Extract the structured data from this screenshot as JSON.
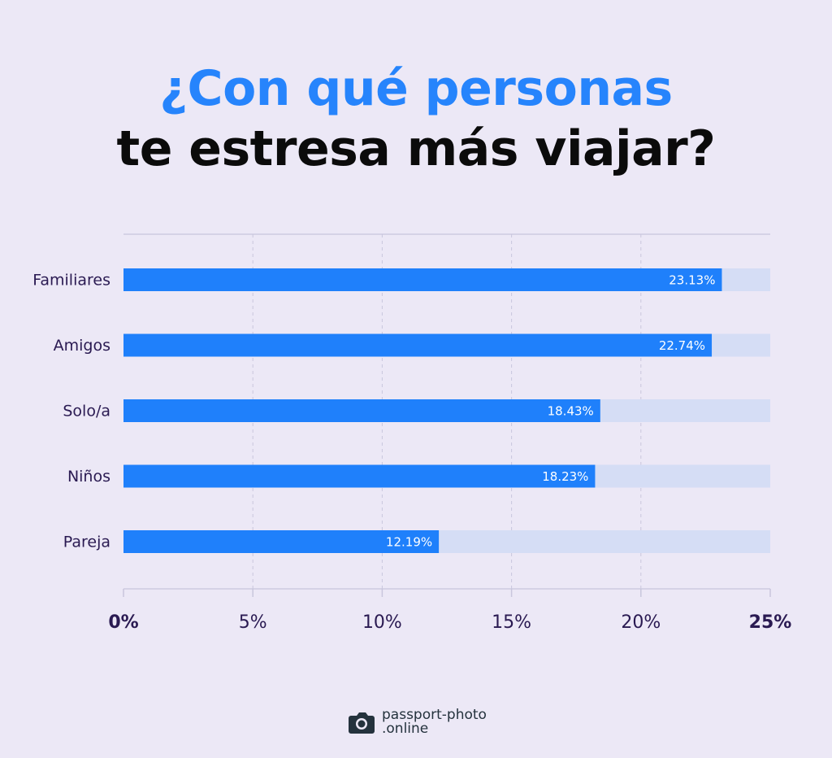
{
  "title": {
    "line1": "¿Con qué personas",
    "line2": "te estresa más viajar?"
  },
  "colors": {
    "background": "#ece8f6",
    "bar": "#1f80fb",
    "track": "#d5ddf5",
    "title_accent": "#2684fc",
    "title_dark": "#0b0b0b",
    "label": "#2a1a52"
  },
  "chart_data": {
    "type": "bar",
    "orientation": "horizontal",
    "categories": [
      "Familiares",
      "Amigos",
      "Solo/a",
      "Niños",
      "Pareja"
    ],
    "values": [
      23.13,
      22.74,
      18.43,
      18.23,
      12.19
    ],
    "value_labels": [
      "23.13%",
      "22.74%",
      "18.43%",
      "18.23%",
      "12.19%"
    ],
    "xlim": [
      0,
      25
    ],
    "ticks": [
      0,
      5,
      10,
      15,
      20,
      25
    ],
    "tick_labels": [
      "0%",
      "5%",
      "10%",
      "15%",
      "20%",
      "25%"
    ],
    "grid": true
  },
  "logo": {
    "icon": "camera-icon",
    "line1": "passport-photo",
    "line2": ".online"
  }
}
